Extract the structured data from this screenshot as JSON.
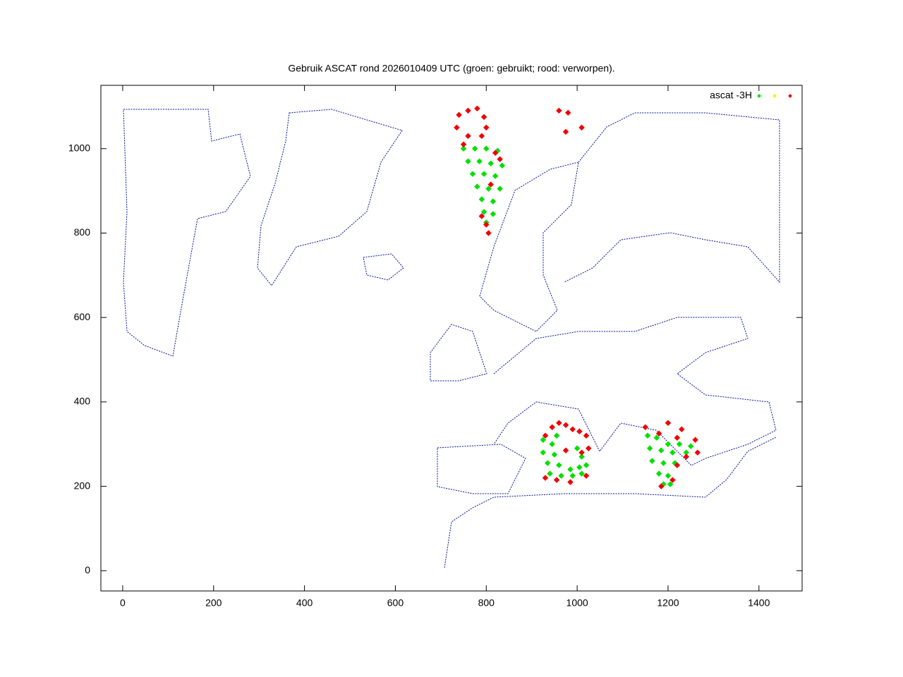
{
  "chart_data": {
    "type": "scatter",
    "title": "Gebruik ASCAT rond 2026010409 UTC (groen: gebruikt; rood: verworpen).",
    "xlim": [
      -48,
      1495
    ],
    "ylim": [
      -48,
      1150
    ],
    "xticks": [
      0,
      200,
      400,
      600,
      800,
      1000,
      1200,
      1400
    ],
    "yticks": [
      0,
      200,
      400,
      600,
      800,
      1000
    ],
    "legend": "top-right",
    "series": [
      {
        "name": "ascat -3H",
        "color": "#00e000",
        "x": [
          750,
          775,
          800,
          825,
          760,
          785,
          810,
          835,
          770,
          795,
          820,
          780,
          805,
          830,
          790,
          815,
          795,
          815,
          800,
          925,
          945,
          925,
          950,
          935,
          960,
          985,
          1005,
          1020,
          940,
          965,
          990,
          1010,
          1000,
          1010,
          955,
          1155,
          1175,
          1200,
          1225,
          1250,
          1160,
          1185,
          1210,
          1240,
          1165,
          1190,
          1215,
          1180,
          1200,
          1190,
          1205
        ],
        "y": [
          1000,
          1000,
          1000,
          995,
          970,
          970,
          965,
          960,
          940,
          940,
          935,
          910,
          905,
          905,
          880,
          875,
          850,
          845,
          825,
          310,
          300,
          280,
          275,
          255,
          250,
          240,
          245,
          250,
          230,
          225,
          225,
          230,
          290,
          270,
          320,
          320,
          315,
          300,
          300,
          295,
          290,
          285,
          280,
          280,
          260,
          255,
          255,
          230,
          225,
          205,
          205
        ]
      },
      {
        "color": "#f0f000",
        "x": [],
        "y": []
      },
      {
        "color": "#f00000",
        "x": [
          740,
          760,
          780,
          795,
          800,
          790,
          760,
          735,
          750,
          820,
          830,
          810,
          790,
          800,
          805,
          960,
          980,
          975,
          1010,
          930,
          945,
          960,
          975,
          990,
          1005,
          1020,
          1025,
          1010,
          975,
          930,
          955,
          985,
          1020,
          1150,
          1180,
          1220,
          1260,
          1265,
          1240,
          1220,
          1210,
          1185,
          1200,
          1230
        ],
        "y": [
          1080,
          1090,
          1095,
          1075,
          1050,
          1030,
          1030,
          1050,
          1010,
          990,
          975,
          915,
          840,
          820,
          800,
          1090,
          1085,
          1040,
          1050,
          320,
          340,
          350,
          345,
          335,
          330,
          320,
          290,
          280,
          285,
          220,
          215,
          210,
          225,
          340,
          325,
          315,
          310,
          280,
          270,
          250,
          215,
          200,
          350,
          335
        ]
      }
    ]
  }
}
